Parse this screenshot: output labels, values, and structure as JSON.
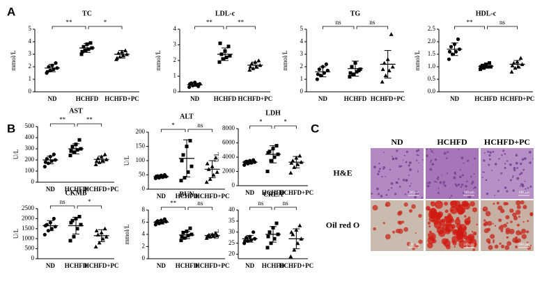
{
  "panel_labels": [
    "A",
    "B",
    "C"
  ],
  "chart_data": [
    {
      "type": "dotplot",
      "title": "TC",
      "ylabel": "mmol/L",
      "categories": [
        "ND",
        "HCHFD",
        "HCHFD+PC"
      ],
      "groups": [
        [
          1.5,
          1.7,
          1.8,
          1.9,
          2.0,
          2.1,
          2.3,
          1.6
        ],
        [
          3.0,
          3.3,
          3.4,
          3.5,
          3.6,
          3.8,
          3.9,
          3.2
        ],
        [
          2.6,
          2.8,
          2.9,
          3.0,
          3.1,
          3.2,
          3.3,
          2.7
        ]
      ],
      "means": [
        1.9,
        3.5,
        3.0
      ],
      "sds": [
        0.3,
        0.35,
        0.3
      ],
      "ylim": [
        0,
        5
      ],
      "yticks": [
        0,
        1,
        2,
        3,
        4,
        5
      ],
      "comparisons": [
        {
          "label": "**",
          "between": [
            "ND",
            "HCHFD"
          ]
        },
        {
          "label": "*",
          "between": [
            "HCHFD",
            "HCHFD+PC"
          ]
        }
      ],
      "markers": [
        "circle",
        "square",
        "triangle"
      ],
      "color": "#000000"
    },
    {
      "type": "dotplot",
      "title": "LDL-c",
      "ylabel": "mmol/L",
      "categories": [
        "ND",
        "HCHFD",
        "HCHFD+PC"
      ],
      "groups": [
        [
          0.3,
          0.4,
          0.45,
          0.5,
          0.55,
          0.6,
          0.35,
          0.5
        ],
        [
          1.9,
          2.1,
          2.2,
          2.3,
          2.4,
          2.6,
          2.9,
          3.1
        ],
        [
          1.4,
          1.5,
          1.6,
          1.7,
          1.8,
          1.9,
          2.0,
          1.6
        ]
      ],
      "means": [
        0.45,
        2.4,
        1.7
      ],
      "sds": [
        0.1,
        0.4,
        0.2
      ],
      "ylim": [
        0,
        4
      ],
      "yticks": [
        0,
        1,
        2,
        3,
        4
      ],
      "comparisons": [
        {
          "label": "**",
          "between": [
            "ND",
            "HCHFD"
          ]
        },
        {
          "label": "**",
          "between": [
            "HCHFD",
            "HCHFD+PC"
          ]
        }
      ],
      "markers": [
        "circle",
        "square",
        "triangle"
      ],
      "color": "#000000"
    },
    {
      "type": "dotplot",
      "title": "TG",
      "ylabel": "mmol/L",
      "categories": [
        "ND",
        "HCHFD",
        "HCHFD+PC"
      ],
      "groups": [
        [
          1.0,
          1.3,
          1.5,
          1.7,
          1.8,
          2.0,
          2.2,
          1.4
        ],
        [
          1.2,
          1.4,
          1.6,
          1.8,
          2.0,
          2.3,
          1.7,
          1.5
        ],
        [
          0.8,
          1.3,
          1.7,
          2.0,
          2.3,
          2.6,
          4.6,
          1.8
        ]
      ],
      "means": [
        1.6,
        1.85,
        2.2
      ],
      "sds": [
        0.4,
        0.6,
        1.1
      ],
      "ylim": [
        0,
        5
      ],
      "yticks": [
        0,
        1,
        2,
        3,
        4,
        5
      ],
      "comparisons": [
        {
          "label": "ns",
          "between": [
            "ND",
            "HCHFD"
          ]
        },
        {
          "label": "ns",
          "between": [
            "HCHFD",
            "HCHFD+PC"
          ]
        }
      ],
      "markers": [
        "circle",
        "square",
        "triangle"
      ],
      "color": "#000000"
    },
    {
      "type": "dotplot",
      "title": "HDL-c",
      "ylabel": "mmol/L",
      "categories": [
        "ND",
        "HCHFD",
        "HCHFD+PC"
      ],
      "groups": [
        [
          1.3,
          1.5,
          1.6,
          1.7,
          1.8,
          1.9,
          2.1,
          1.6
        ],
        [
          0.9,
          0.95,
          1.0,
          1.0,
          1.05,
          1.1,
          1.15,
          1.0
        ],
        [
          0.8,
          0.95,
          1.0,
          1.1,
          1.15,
          1.2,
          1.35,
          1.05
        ]
      ],
      "means": [
        1.7,
        1.02,
        1.1
      ],
      "sds": [
        0.25,
        0.08,
        0.15
      ],
      "ylim": [
        0,
        2.5
      ],
      "yticks": [
        {
          "value": 0,
          "label": "0.0"
        },
        0.5,
        {
          "value": 1,
          "label": "1.0"
        },
        1.5,
        {
          "value": 2,
          "label": "2.0"
        },
        2.5
      ],
      "comparisons": [
        {
          "label": "**",
          "between": [
            "ND",
            "HCHFD"
          ]
        },
        {
          "label": "ns",
          "between": [
            "HCHFD",
            "HCHFD+PC"
          ]
        }
      ],
      "markers": [
        "circle",
        "square",
        "triangle"
      ],
      "color": "#000000"
    },
    {
      "type": "dotplot",
      "title": "AST",
      "ylabel": "U/L",
      "categories": [
        "ND",
        "HCHFD",
        "HCHFD+PC"
      ],
      "groups": [
        [
          140,
          170,
          190,
          200,
          210,
          230,
          250,
          180
        ],
        [
          240,
          270,
          290,
          300,
          320,
          340,
          380,
          280
        ],
        [
          160,
          180,
          195,
          205,
          215,
          230,
          250,
          190
        ]
      ],
      "means": [
        200,
        300,
        205
      ],
      "sds": [
        35,
        45,
        30
      ],
      "ylim": [
        0,
        500
      ],
      "yticks": [
        0,
        100,
        200,
        300,
        400,
        500
      ],
      "comparisons": [
        {
          "label": "**",
          "between": [
            "ND",
            "HCHFD"
          ]
        },
        {
          "label": "**",
          "between": [
            "HCHFD",
            "HCHFD+PC"
          ]
        }
      ],
      "markers": [
        "circle",
        "square",
        "triangle"
      ],
      "color": "#000000"
    },
    {
      "type": "dotplot",
      "title": "ALT",
      "ylabel": "U/L",
      "categories": [
        "ND",
        "HCHFD",
        "HCHFD+PC"
      ],
      "groups": [
        [
          38,
          40,
          42,
          44,
          46,
          48,
          50,
          45
        ],
        [
          30,
          40,
          60,
          80,
          120,
          150,
          170,
          100
        ],
        [
          25,
          35,
          50,
          60,
          70,
          80,
          110,
          90
        ]
      ],
      "means": [
        44,
        108,
        70
      ],
      "sds": [
        5,
        65,
        30
      ],
      "ylim": [
        0,
        200
      ],
      "yticks": [
        0,
        50,
        100,
        150,
        200
      ],
      "comparisons": [
        {
          "label": "*",
          "between": [
            "ND",
            "HCHFD"
          ]
        },
        {
          "label": "ns",
          "between": [
            "HCHFD",
            "HCHFD+PC"
          ]
        }
      ],
      "markers": [
        "circle",
        "square",
        "triangle"
      ],
      "color": "#000000"
    },
    {
      "type": "dotplot",
      "title": "LDH",
      "ylabel": "U/L",
      "categories": [
        "ND",
        "HCHFD",
        "HCHFD+PC"
      ],
      "groups": [
        [
          2900,
          3100,
          3200,
          3300,
          3400,
          3500,
          3600,
          3300
        ],
        [
          2000,
          3500,
          4000,
          4400,
          4800,
          5200,
          5600,
          4600
        ],
        [
          1800,
          2600,
          3000,
          3300,
          3500,
          3900,
          4200,
          3200
        ]
      ],
      "means": [
        3300,
        4400,
        3300
      ],
      "sds": [
        250,
        1200,
        800
      ],
      "ylim": [
        0,
        8000
      ],
      "yticks": [
        0,
        2000,
        4000,
        6000,
        8000
      ],
      "comparisons": [
        {
          "label": "*",
          "between": [
            "ND",
            "HCHFD"
          ]
        },
        {
          "label": "*",
          "between": [
            "HCHFD",
            "HCHFD+PC"
          ]
        }
      ],
      "markers": [
        "circle",
        "square",
        "triangle"
      ],
      "color": "#000000"
    },
    {
      "type": "dotplot",
      "title": "CKMB",
      "ylabel": "U/L",
      "categories": [
        "ND",
        "HCHFD",
        "HCHFD+PC"
      ],
      "groups": [
        [
          1200,
          1400,
          1500,
          1600,
          1700,
          1800,
          2000,
          1650
        ],
        [
          900,
          1100,
          1500,
          1700,
          1900,
          2000,
          2100,
          1800
        ],
        [
          600,
          800,
          1000,
          1100,
          1200,
          1300,
          1500,
          1400
        ]
      ],
      "means": [
        1650,
        1650,
        1150
      ],
      "sds": [
        250,
        420,
        300
      ],
      "ylim": [
        0,
        2500
      ],
      "yticks": [
        0,
        500,
        1000,
        1500,
        2000,
        2500
      ],
      "comparisons": [
        {
          "label": "ns",
          "between": [
            "ND",
            "HCHFD"
          ]
        },
        {
          "label": "*",
          "between": [
            "HCHFD",
            "HCHFD+PC"
          ]
        }
      ],
      "markers": [
        "circle",
        "square",
        "triangle"
      ],
      "color": "#000000"
    },
    {
      "type": "dotplot",
      "title": "BUN",
      "ylabel": "mmol/L",
      "categories": [
        "ND",
        "HCHFD",
        "HCHFD+PC"
      ],
      "groups": [
        [
          5.6,
          5.8,
          6.0,
          6.1,
          6.2,
          6.3,
          6.5,
          6.0
        ],
        [
          3.0,
          3.4,
          3.8,
          4.0,
          4.3,
          4.5,
          5.0,
          3.6
        ],
        [
          3.4,
          3.6,
          3.7,
          3.8,
          3.9,
          4.0,
          4.2,
          3.7
        ]
      ],
      "means": [
        6.0,
        3.9,
        3.8
      ],
      "sds": [
        0.3,
        0.6,
        0.25
      ],
      "ylim": [
        0,
        8
      ],
      "yticks": [
        0,
        2,
        4,
        6,
        8
      ],
      "comparisons": [
        {
          "label": "**",
          "between": [
            "ND",
            "HCHFD"
          ]
        },
        {
          "label": "ns",
          "between": [
            "HCHFD",
            "HCHFD+PC"
          ]
        }
      ],
      "markers": [
        "circle",
        "square",
        "triangle"
      ],
      "color": "#000000"
    },
    {
      "type": "dotplot",
      "title": "CREA",
      "ylabel": "U/L",
      "categories": [
        "ND",
        "HCHFD",
        "HCHFD+PC"
      ],
      "groups": [
        [
          25,
          26,
          26.5,
          27,
          27.5,
          28,
          30,
          26
        ],
        [
          23,
          25,
          27,
          29,
          30,
          32,
          34,
          28
        ],
        [
          19,
          22,
          25,
          27,
          29,
          31,
          33,
          30
        ]
      ],
      "means": [
        27,
        29,
        27
      ],
      "sds": [
        1.5,
        3.5,
        4.5
      ],
      "ylim": [
        18,
        40
      ],
      "yticks": [
        20,
        25,
        30,
        35,
        40
      ],
      "comparisons": [
        {
          "label": "ns",
          "between": [
            "ND",
            "HCHFD"
          ]
        },
        {
          "label": "ns",
          "between": [
            "HCHFD",
            "HCHFD+PC"
          ]
        }
      ],
      "markers": [
        "circle",
        "square",
        "triangle"
      ],
      "color": "#000000"
    }
  ],
  "histology": {
    "columns": [
      "ND",
      "HCHFD",
      "HCHFD+PC"
    ],
    "rows": [
      "H&E",
      "Oil red O"
    ],
    "scale_bar_label": "100 μm"
  }
}
